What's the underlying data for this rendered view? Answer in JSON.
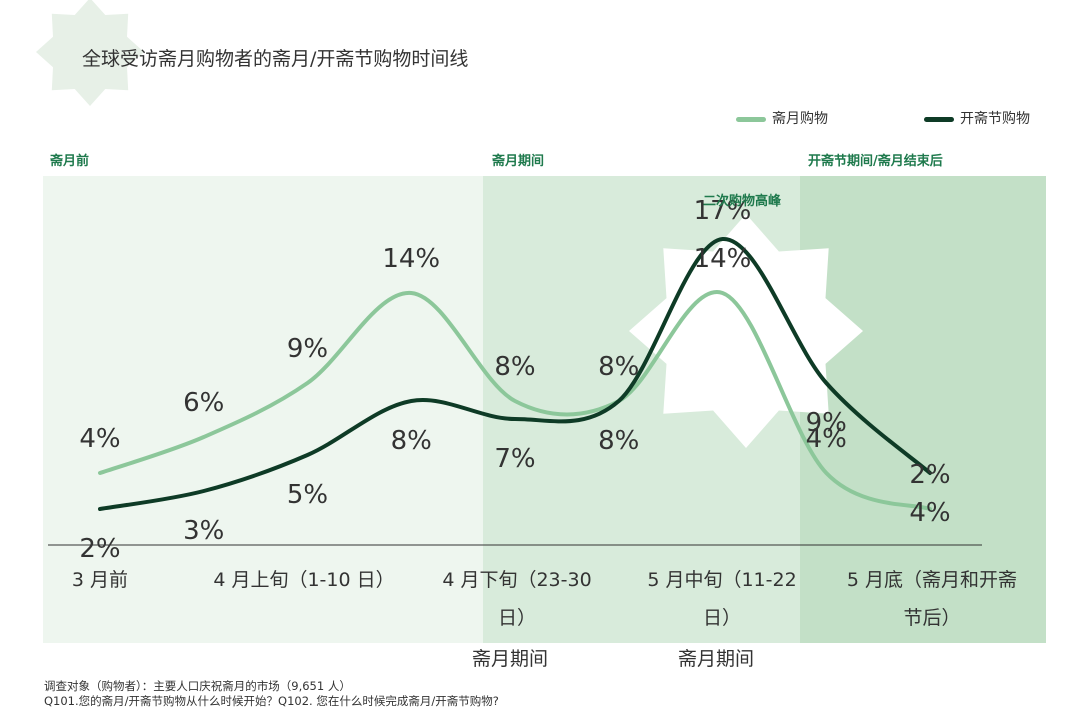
{
  "title": "全球受访斋月购物者的斋月/开斋节购物时间线",
  "phases": [
    "斋月前",
    "斋月期间",
    "开斋节期间/斋月结束后"
  ],
  "peak_note": "二次购物高峰",
  "legend": [
    "斋月购物",
    "开斋节购物"
  ],
  "colors": {
    "ramadan": "#8cc79a",
    "eid": "#0e3b26",
    "band1": "#eef6ef",
    "band2": "#d8ebdb",
    "band3": "#c3e0c7",
    "accent": "#1f7a4d"
  },
  "x_labels": [
    "3 月前",
    "4 月上旬（1-10 日）",
    "4 月下旬（23-30 日）",
    "5 月中旬（11-22 日）",
    "5 月底（斋月和开斋节后）"
  ],
  "sub_labels": [
    "斋月期间",
    "斋月期间"
  ],
  "footnote": {
    "line1": "调查对象（购物者）：主要人口庆祝斋月的市场（9,651 人）",
    "line2": "Q101.您的斋月/开斋节购物从什么时候开始？Q102. 您在什么时候完成斋月/开斋节购物?"
  },
  "chart_data": {
    "type": "line",
    "x": [
      "3 月前",
      "",
      "4 月上旬（1-10 日）",
      "",
      "4 月下旬（23-30 日）",
      "",
      "5 月中旬（11-22 日）",
      "",
      "5 月底（斋月和开斋节后）"
    ],
    "series": [
      {
        "name": "斋月购物",
        "values": [
          4,
          6,
          9,
          14,
          8,
          8,
          14,
          4,
          2
        ]
      },
      {
        "name": "开斋节购物",
        "values": [
          2,
          3,
          5,
          8,
          7,
          8,
          17,
          9,
          4
        ]
      }
    ],
    "labels": [
      [
        "4%",
        "6%",
        "9%",
        "14%",
        "8%",
        "8%",
        "14%",
        "4%",
        "2%"
      ],
      [
        "2%",
        "3%",
        "5%",
        "8%",
        "7%",
        "8%",
        "17%",
        "9%",
        "4%"
      ]
    ],
    "ylim": [
      0,
      20
    ],
    "grid": false
  }
}
